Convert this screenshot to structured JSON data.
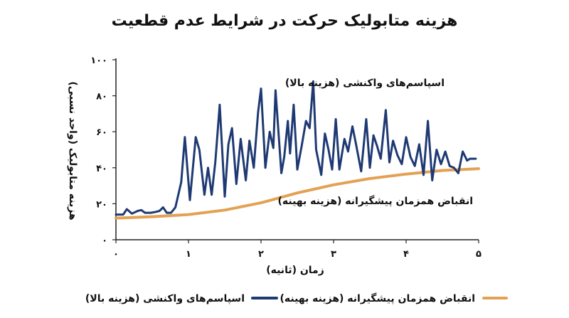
{
  "chart_data": {
    "type": "line",
    "title": "هزینه متابولیک حرکت در شرایط عدم قطعیت",
    "xlabel": "زمان (ثانیه)",
    "ylabel": "هزینه متابولیک (واحد نسبی)",
    "xlim": [
      0,
      5
    ],
    "ylim": [
      0,
      100
    ],
    "x_ticks": [
      0,
      1,
      2,
      3,
      4,
      5
    ],
    "x_tick_labels": [
      "۰",
      "۱",
      "۲",
      "۳",
      "۴",
      "۵"
    ],
    "y_ticks": [
      0,
      20,
      40,
      60,
      80,
      100
    ],
    "y_tick_labels": [
      "۰",
      "۲۰",
      "۴۰",
      "۶۰",
      "۸۰",
      "۱۰۰"
    ],
    "legend_position": "bottom",
    "series": [
      {
        "name": "اسپاسم‌های واکنشی (هزینه بالا)",
        "color": "#1f3a73",
        "annotation": "اسپاسم‌های واکنشی (هزینه بالا)",
        "points": [
          [
            0.0,
            14
          ],
          [
            0.1,
            14
          ],
          [
            0.15,
            17
          ],
          [
            0.22,
            14.5
          ],
          [
            0.3,
            16
          ],
          [
            0.35,
            16.5
          ],
          [
            0.4,
            15
          ],
          [
            0.48,
            15
          ],
          [
            0.55,
            15.5
          ],
          [
            0.6,
            16
          ],
          [
            0.65,
            18
          ],
          [
            0.7,
            15
          ],
          [
            0.76,
            15
          ],
          [
            0.82,
            18
          ],
          [
            0.9,
            32
          ],
          [
            0.95,
            57
          ],
          [
            1.02,
            22
          ],
          [
            1.1,
            57
          ],
          [
            1.15,
            50
          ],
          [
            1.22,
            25
          ],
          [
            1.27,
            40
          ],
          [
            1.32,
            25
          ],
          [
            1.37,
            43
          ],
          [
            1.43,
            75
          ],
          [
            1.5,
            24
          ],
          [
            1.55,
            53
          ],
          [
            1.6,
            62
          ],
          [
            1.66,
            31
          ],
          [
            1.72,
            56
          ],
          [
            1.79,
            33
          ],
          [
            1.84,
            55
          ],
          [
            1.9,
            40
          ],
          [
            1.96,
            71
          ],
          [
            2.0,
            84
          ],
          [
            2.06,
            40
          ],
          [
            2.12,
            60
          ],
          [
            2.17,
            51
          ],
          [
            2.2,
            83
          ],
          [
            2.28,
            37
          ],
          [
            2.32,
            46
          ],
          [
            2.37,
            66
          ],
          [
            2.4,
            48
          ],
          [
            2.45,
            75
          ],
          [
            2.5,
            39
          ],
          [
            2.56,
            52
          ],
          [
            2.62,
            66
          ],
          [
            2.67,
            62
          ],
          [
            2.72,
            88
          ],
          [
            2.76,
            50
          ],
          [
            2.83,
            36
          ],
          [
            2.88,
            59
          ],
          [
            2.93,
            50
          ],
          [
            2.98,
            39
          ],
          [
            3.03,
            67
          ],
          [
            3.08,
            39
          ],
          [
            3.15,
            56
          ],
          [
            3.2,
            49
          ],
          [
            3.26,
            63
          ],
          [
            3.31,
            53
          ],
          [
            3.38,
            38
          ],
          [
            3.45,
            67
          ],
          [
            3.5,
            40
          ],
          [
            3.55,
            58
          ],
          [
            3.6,
            52
          ],
          [
            3.65,
            45
          ],
          [
            3.72,
            72
          ],
          [
            3.77,
            43
          ],
          [
            3.82,
            55
          ],
          [
            3.88,
            47
          ],
          [
            3.94,
            42
          ],
          [
            4.0,
            57
          ],
          [
            4.06,
            46
          ],
          [
            4.12,
            41
          ],
          [
            4.18,
            53
          ],
          [
            4.24,
            36
          ],
          [
            4.3,
            66
          ],
          [
            4.36,
            33
          ],
          [
            4.42,
            50
          ],
          [
            4.48,
            42
          ],
          [
            4.54,
            49
          ],
          [
            4.6,
            41
          ],
          [
            4.66,
            40
          ],
          [
            4.72,
            37
          ],
          [
            4.78,
            49
          ],
          [
            4.84,
            44
          ],
          [
            4.88,
            45
          ],
          [
            4.93,
            45
          ],
          [
            4.96,
            45
          ]
        ]
      },
      {
        "name": "انقباض همزمان پیشگیرانه (هزینه بهینه)",
        "color": "#e3a154",
        "annotation": "انقباض همزمان پیشگیرانه (هزینه بهینه)",
        "points": [
          [
            0.0,
            12
          ],
          [
            0.5,
            12.8
          ],
          [
            1.0,
            14
          ],
          [
            1.5,
            16.5
          ],
          [
            2.0,
            20.5
          ],
          [
            2.5,
            26
          ],
          [
            3.0,
            30.5
          ],
          [
            3.5,
            34
          ],
          [
            4.0,
            36.5
          ],
          [
            4.5,
            38.5
          ],
          [
            5.0,
            39.5
          ]
        ]
      }
    ]
  }
}
